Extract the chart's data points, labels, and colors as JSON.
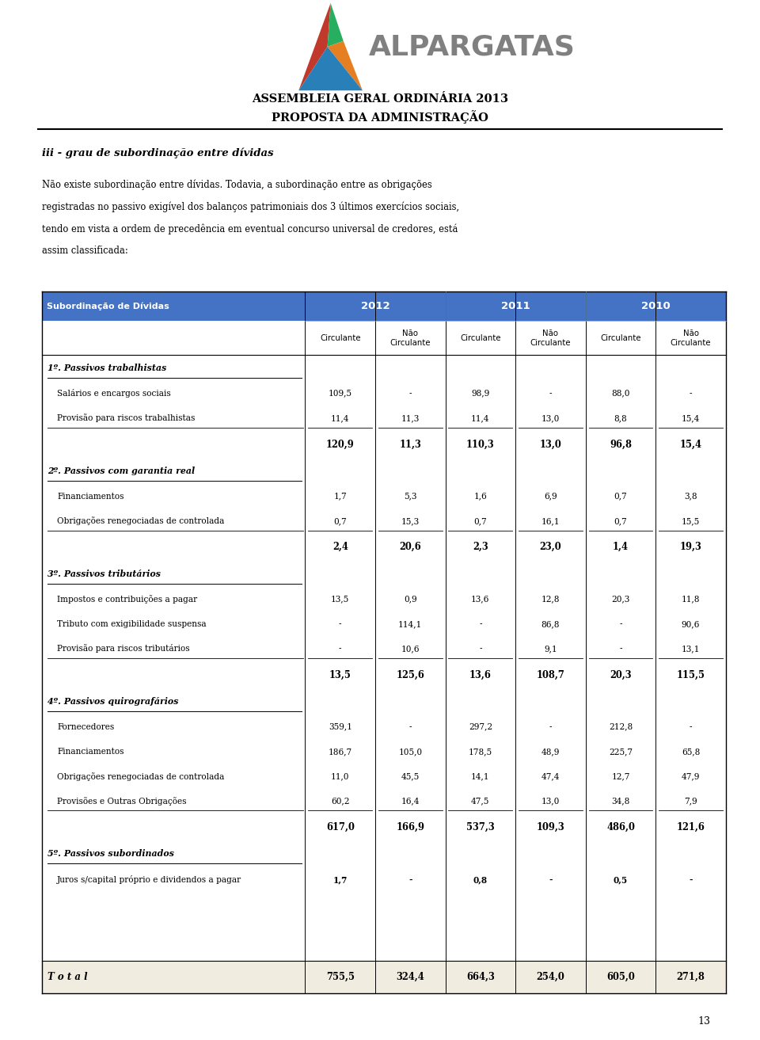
{
  "page_title1": "ASSEMBLEIA GERAL ORDINÁRIA 2013",
  "page_title2": "PROPOSTA DA ADMINISTRAÇÃO",
  "section_title": "iii - grau de subordinação entre dívidas",
  "paragraph": "Não existe subordinação entre dívidas. Todavia, a subordinação entre as obrigações\nregistradas no passivo exigível dos balanços patrimoniais dos 3 últimos exercícios sociais,\ntendo em vista a ordem de precedência em eventual concurso universal de credores, está\nassim classificada:",
  "table_header_col": "Subordinação de Dívidas",
  "years": [
    "2012",
    "2011",
    "2010"
  ],
  "col_headers": [
    "Circulante",
    "Não\nCirculante",
    "Circulante",
    "Não\nCirculante",
    "Circulante",
    "Não\nCirculante"
  ],
  "header_bg": "#4472C4",
  "header_text_color": "#FFFFFF",
  "table_rows": [
    {
      "label": "1º. Passivos trabalhistas",
      "type": "section",
      "values": [
        "",
        "",
        "",
        "",
        "",
        ""
      ]
    },
    {
      "label": "Salários e encargos sociais",
      "type": "data",
      "values": [
        "109,5",
        "-",
        "98,9",
        "-",
        "88,0",
        "-"
      ]
    },
    {
      "label": "Provisão para riscos trabalhistas",
      "type": "data_underline",
      "values": [
        "11,4",
        "11,3",
        "11,4",
        "13,0",
        "8,8",
        "15,4"
      ]
    },
    {
      "label": "",
      "type": "subtotal",
      "values": [
        "120,9",
        "11,3",
        "110,3",
        "13,0",
        "96,8",
        "15,4"
      ]
    },
    {
      "label": "2º. Passivos com garantia real",
      "type": "section",
      "values": [
        "",
        "",
        "",
        "",
        "",
        ""
      ]
    },
    {
      "label": "Financiamentos",
      "type": "data",
      "values": [
        "1,7",
        "5,3",
        "1,6",
        "6,9",
        "0,7",
        "3,8"
      ]
    },
    {
      "label": "Obrigações renegociadas de controlada",
      "type": "data_underline",
      "values": [
        "0,7",
        "15,3",
        "0,7",
        "16,1",
        "0,7",
        "15,5"
      ]
    },
    {
      "label": "",
      "type": "subtotal",
      "values": [
        "2,4",
        "20,6",
        "2,3",
        "23,0",
        "1,4",
        "19,3"
      ]
    },
    {
      "label": "3º. Passivos tributários",
      "type": "section",
      "values": [
        "",
        "",
        "",
        "",
        "",
        ""
      ]
    },
    {
      "label": "Impostos e contribuições a pagar",
      "type": "data",
      "values": [
        "13,5",
        "0,9",
        "13,6",
        "12,8",
        "20,3",
        "11,8"
      ]
    },
    {
      "label": "Tributo com exigibilidade suspensa",
      "type": "data",
      "values": [
        "-",
        "114,1",
        "-",
        "86,8",
        "-",
        "90,6"
      ]
    },
    {
      "label": "Provisão para riscos tributários",
      "type": "data_underline",
      "values": [
        "-",
        "10,6",
        "-",
        "9,1",
        "-",
        "13,1"
      ]
    },
    {
      "label": "",
      "type": "subtotal",
      "values": [
        "13,5",
        "125,6",
        "13,6",
        "108,7",
        "20,3",
        "115,5"
      ]
    },
    {
      "label": "4º. Passivos quirografários",
      "type": "section",
      "values": [
        "",
        "",
        "",
        "",
        "",
        ""
      ]
    },
    {
      "label": "Fornecedores",
      "type": "data",
      "values": [
        "359,1",
        "-",
        "297,2",
        "-",
        "212,8",
        "-"
      ]
    },
    {
      "label": "Financiamentos",
      "type": "data",
      "values": [
        "186,7",
        "105,0",
        "178,5",
        "48,9",
        "225,7",
        "65,8"
      ]
    },
    {
      "label": "Obrigações renegociadas de controlada",
      "type": "data",
      "values": [
        "11,0",
        "45,5",
        "14,1",
        "47,4",
        "12,7",
        "47,9"
      ]
    },
    {
      "label": "Provisões e Outras Obrigações",
      "type": "data_underline",
      "values": [
        "60,2",
        "16,4",
        "47,5",
        "13,0",
        "34,8",
        "7,9"
      ]
    },
    {
      "label": "",
      "type": "subtotal",
      "values": [
        "617,0",
        "166,9",
        "537,3",
        "109,3",
        "486,0",
        "121,6"
      ]
    },
    {
      "label": "5º. Passivos subordinados",
      "type": "section",
      "values": [
        "",
        "",
        "",
        "",
        "",
        ""
      ]
    },
    {
      "label": "Juros s/capital próprio e dividendos a pagar",
      "type": "data_bold",
      "values": [
        "1,7",
        "-",
        "0,8",
        "-",
        "0,5",
        "-"
      ]
    },
    {
      "label": "",
      "type": "spacer",
      "values": [
        "",
        "",
        "",
        "",
        "",
        ""
      ]
    },
    {
      "label": "",
      "type": "spacer",
      "values": [
        "",
        "",
        "",
        "",
        "",
        ""
      ]
    },
    {
      "label": "T o t a l",
      "type": "total",
      "values": [
        "755,5",
        "324,4",
        "664,3",
        "254,0",
        "605,0",
        "271,8"
      ]
    }
  ],
  "footer_page": "13",
  "bg_color": "#FFFFFF",
  "table_border_color": "#000000",
  "section_text_color": "#000000",
  "total_bg": "#F0EDE0",
  "logo_company": "ALPARGATAS",
  "logo_colors": {
    "red": "#C0392B",
    "green": "#27AE60",
    "orange": "#E67E22",
    "blue": "#2980B9"
  }
}
